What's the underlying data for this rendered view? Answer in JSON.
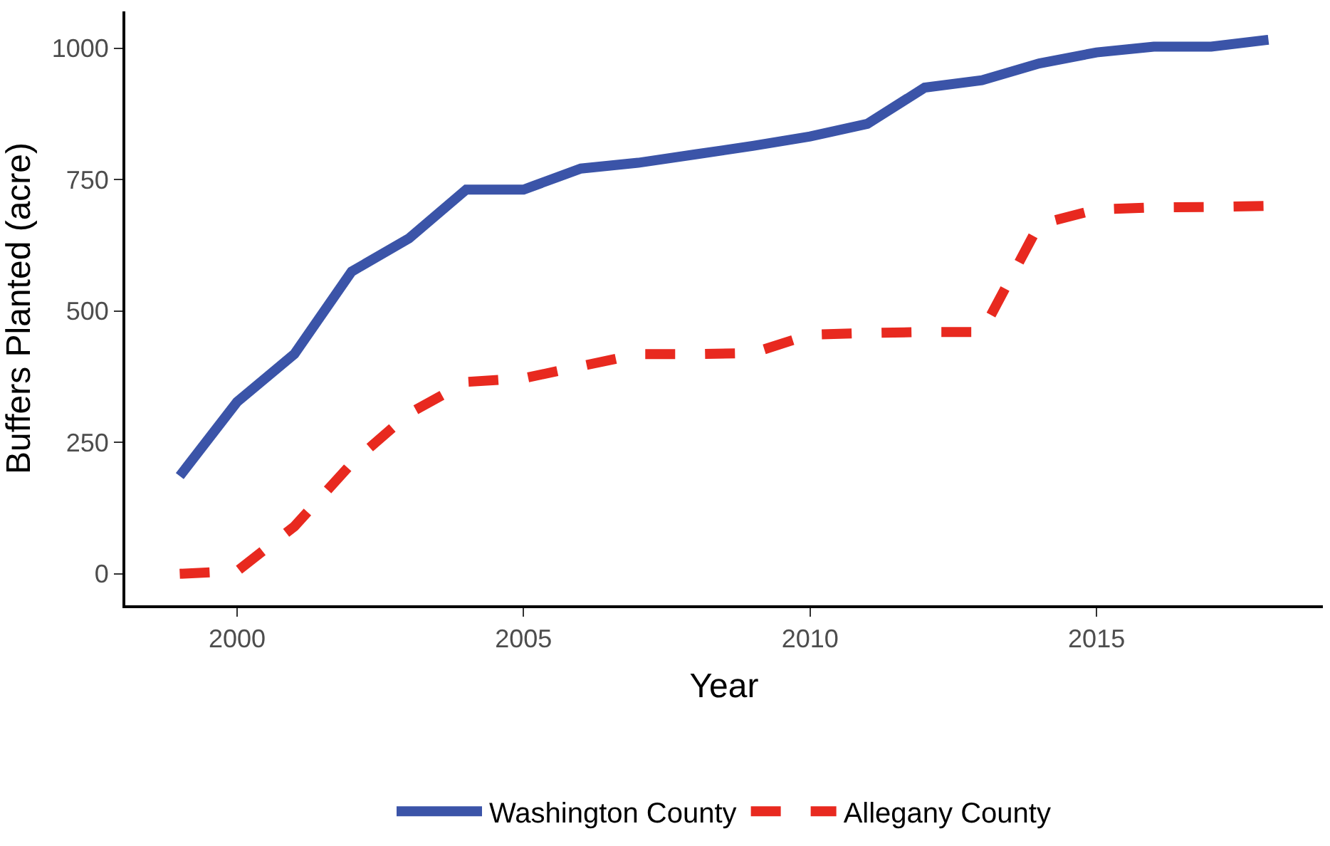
{
  "chart_data": {
    "type": "line",
    "xlabel": "Year",
    "ylabel": "Buffers Planted (acre)",
    "x": [
      1999,
      2000,
      2001,
      2002,
      2003,
      2004,
      2005,
      2006,
      2007,
      2008,
      2009,
      2010,
      2011,
      2012,
      2013,
      2014,
      2015,
      2016,
      2017,
      2018
    ],
    "series": [
      {
        "name": "Washington County",
        "color": "#3b54a8",
        "line_style": "solid",
        "values": [
          186,
          327,
          418,
          575,
          638,
          731,
          731,
          771,
          782,
          798,
          814,
          832,
          856,
          925,
          939,
          971,
          992,
          1003,
          1003,
          1016
        ]
      },
      {
        "name": "Allegany County",
        "color": "#e8291f",
        "line_style": "dashed",
        "values": [
          0,
          5,
          90,
          210,
          305,
          365,
          372,
          395,
          418,
          418,
          420,
          455,
          458,
          460,
          460,
          665,
          693,
          697,
          698,
          700
        ]
      }
    ],
    "xlim": [
      1998.05,
      2018.95
    ],
    "xticks": [
      2000,
      2005,
      2010,
      2015
    ],
    "ylim": [
      -60,
      1070
    ],
    "yticks": [
      0,
      250,
      500,
      750,
      1000
    ],
    "grid": false,
    "legend": "bottom",
    "marker": "none"
  }
}
